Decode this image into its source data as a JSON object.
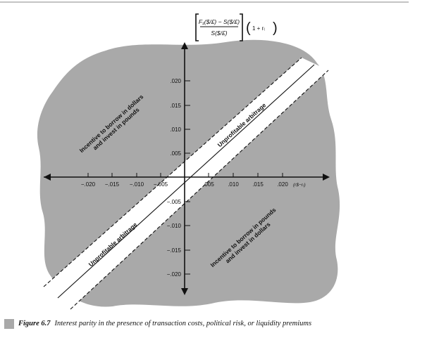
{
  "header_formula": {
    "numerator": "F₁($/£) − S($/£)",
    "denominator": "S($/£)",
    "factor": "1 + r₍"
  },
  "x_axis": {
    "label": "(r$−r₍)",
    "positive_ticks": [
      ".005",
      ".010",
      ".015",
      ".020"
    ],
    "negative_ticks": [
      "−.020",
      "−.015",
      "−.010",
      "−.005"
    ]
  },
  "y_axis": {
    "positive_ticks": [
      ".005",
      ".010",
      ".015",
      ".020"
    ],
    "negative_ticks": [
      "−.005",
      "−.010",
      "−.015",
      "−.020"
    ]
  },
  "regions": {
    "upper_left": [
      "Incentive to borrow in dollars",
      "and invest in pounds"
    ],
    "lower_right": [
      "Incentive to borrow in pounds",
      "and invest in dollars"
    ]
  },
  "band": {
    "upper_label": "Unprofitable arbitrage",
    "lower_label": "Unprofitable arbitrage"
  },
  "caption": {
    "number": "Figure 6.7",
    "text": "Interest parity in the presence of transaction costs, political risk, or liquidity premiums"
  },
  "colors": {
    "region_fill": "#a9a9a9",
    "ink": "#111111"
  }
}
